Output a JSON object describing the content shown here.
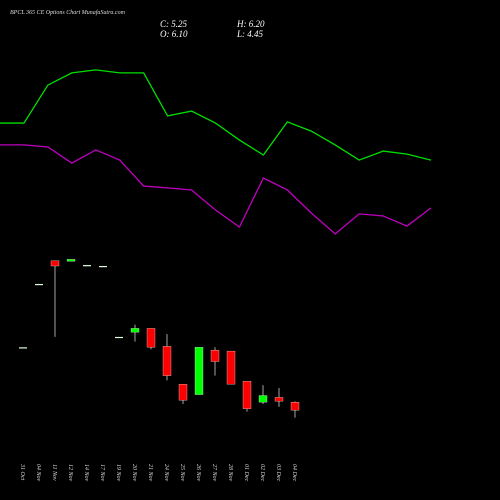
{
  "header": {
    "title": "BPCL 365 CE Options Chart MunafaSutra.com",
    "close": "C: 5.25",
    "high": "H: 6.20",
    "open": "O: 6.10",
    "low": "L: 4.45"
  },
  "chart_data": [
    {
      "type": "line",
      "x": [
        0,
        1,
        2,
        3,
        4,
        5,
        6,
        7,
        8,
        9,
        10,
        11,
        12,
        13,
        14,
        15,
        16,
        17,
        18
      ],
      "xlim": [
        0,
        18
      ],
      "ylim": [
        0,
        100
      ],
      "series": [
        {
          "color": "#00e000",
          "values": [
            55.2,
            55.2,
            71.7,
            77.0,
            78.3,
            77.0,
            77.0,
            58.3,
            60.4,
            55.2,
            47.8,
            41.3,
            55.7,
            51.7,
            45.7,
            39.1,
            43.0,
            41.7,
            39.1
          ]
        },
        {
          "color": "#c000c0",
          "values": [
            45.7,
            45.7,
            44.8,
            37.8,
            43.5,
            39.1,
            27.8,
            27.0,
            26.1,
            17.4,
            10.0,
            31.3,
            26.1,
            16.1,
            7.0,
            15.7,
            14.8,
            10.4,
            18.3
          ]
        }
      ]
    },
    {
      "type": "candlestick",
      "ylim": [
        4,
        26
      ],
      "up_color": "#00ff00",
      "down_color": "#ff0000",
      "flat_color": "#e0ffe0",
      "categories": [
        "31 Oct",
        "04 Nov",
        "11 Nov",
        "12 Nov",
        "14 Nov",
        "17 Nov",
        "19 Nov",
        "20 Nov",
        "21 Nov",
        "24 Nov",
        "25 Nov",
        "26 Nov",
        "27 Nov",
        "28 Nov",
        "01 Dec",
        "02 Dec",
        "03 Dec",
        "04 Dec"
      ],
      "open": [
        11.9,
        18.6,
        21.05,
        21.0,
        20.6,
        20.5,
        13.0,
        13.5,
        13.9,
        12.0,
        8.0,
        6.9,
        11.6,
        11.5,
        8.3,
        6.1,
        6.6,
        6.1
      ],
      "high": [
        11.9,
        18.6,
        21.05,
        21.2,
        20.6,
        20.5,
        13.0,
        14.3,
        13.9,
        13.3,
        8.0,
        11.9,
        11.9,
        11.5,
        8.3,
        7.9,
        7.6,
        6.2
      ],
      "low": [
        11.9,
        18.6,
        13.0,
        21.0,
        20.6,
        20.5,
        13.0,
        12.5,
        11.7,
        8.4,
        5.9,
        6.9,
        8.9,
        8.0,
        5.1,
        5.9,
        5.6,
        4.45
      ],
      "close": [
        11.9,
        18.6,
        20.5,
        21.2,
        20.6,
        20.5,
        13.0,
        13.9,
        11.9,
        8.9,
        6.3,
        11.9,
        10.4,
        8.0,
        5.4,
        6.8,
        6.2,
        5.25
      ]
    }
  ]
}
